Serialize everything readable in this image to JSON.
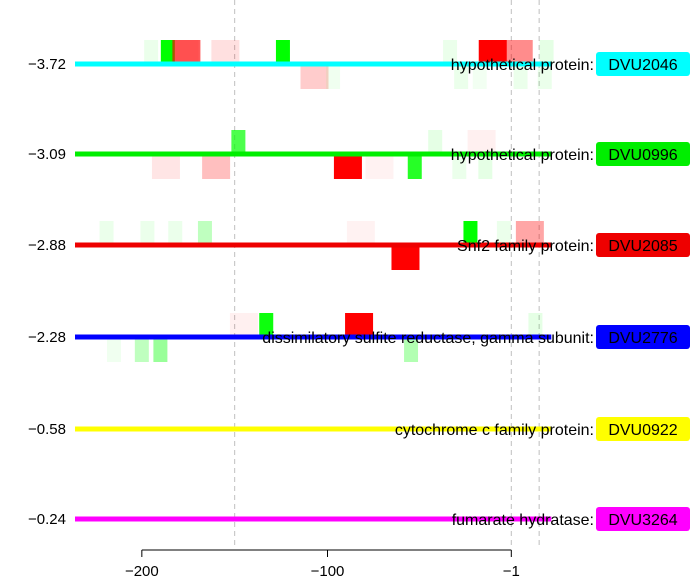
{
  "chart_data": {
    "type": "bar",
    "title": "",
    "xlabel": "",
    "ylabel": "",
    "xlim": [
      -236,
      36
    ],
    "x_ticks": [
      {
        "value": -200,
        "label": "−200"
      },
      {
        "value": -100,
        "label": "−100"
      },
      {
        "value": -1,
        "label": "−1"
      }
    ],
    "dashed_lines_x": [
      -150,
      -1,
      14
    ],
    "colors": {
      "red": "#ff0000",
      "green": "#00ff00"
    },
    "genes": [
      {
        "score": "−3.72",
        "description": "hypothetical protein:",
        "id": "DVU2046",
        "color": "#00ffff",
        "sites": [
          {
            "pos": -195,
            "strand": "up",
            "kind": "green",
            "opacity": 0.08
          },
          {
            "pos": -177,
            "strand": "up",
            "kind": "red",
            "opacity": 0.1
          },
          {
            "pos": -186,
            "strand": "up",
            "kind": "green",
            "opacity": 1
          },
          {
            "pos": -176,
            "strand": "up",
            "kind": "red",
            "opacity": 0.65
          },
          {
            "pos": -155,
            "strand": "up",
            "kind": "red",
            "opacity": 0.12
          },
          {
            "pos": -124,
            "strand": "up",
            "kind": "green",
            "opacity": 1
          },
          {
            "pos": -34,
            "strand": "up",
            "kind": "green",
            "opacity": 0.08
          },
          {
            "pos": -11,
            "strand": "up",
            "kind": "red",
            "opacity": 1
          },
          {
            "pos": 3,
            "strand": "up",
            "kind": "red",
            "opacity": 0.45
          },
          {
            "pos": 18,
            "strand": "up",
            "kind": "green",
            "opacity": 0.1
          },
          {
            "pos": -107,
            "strand": "down",
            "kind": "red",
            "opacity": 0.2
          },
          {
            "pos": -97,
            "strand": "down",
            "kind": "green",
            "opacity": 0.06
          },
          {
            "pos": -28,
            "strand": "down",
            "kind": "green",
            "opacity": 0.08
          },
          {
            "pos": -18,
            "strand": "down",
            "kind": "green",
            "opacity": 0.05
          },
          {
            "pos": 4,
            "strand": "down",
            "kind": "green",
            "opacity": 0.08
          },
          {
            "pos": 17,
            "strand": "down",
            "kind": "green",
            "opacity": 0.08
          }
        ]
      },
      {
        "score": "−3.09",
        "description": "hypothetical protein:",
        "id": "DVU0996",
        "color": "#00ee00",
        "sites": [
          {
            "pos": -148,
            "strand": "up",
            "kind": "green",
            "opacity": 0.7
          },
          {
            "pos": -42,
            "strand": "up",
            "kind": "green",
            "opacity": 0.1
          },
          {
            "pos": -17,
            "strand": "up",
            "kind": "red",
            "opacity": 0.06
          },
          {
            "pos": -187,
            "strand": "down",
            "kind": "red",
            "opacity": 0.1
          },
          {
            "pos": -160,
            "strand": "down",
            "kind": "red",
            "opacity": 0.25
          },
          {
            "pos": -89,
            "strand": "down",
            "kind": "red",
            "opacity": 1
          },
          {
            "pos": -72,
            "strand": "down",
            "kind": "red",
            "opacity": 0.05
          },
          {
            "pos": -53,
            "strand": "down",
            "kind": "green",
            "opacity": 0.85
          },
          {
            "pos": -29,
            "strand": "down",
            "kind": "green",
            "opacity": 0.08
          },
          {
            "pos": -15,
            "strand": "down",
            "kind": "green",
            "opacity": 0.1
          }
        ]
      },
      {
        "score": "−2.88",
        "description": "Snf2 family protein:",
        "id": "DVU2085",
        "color": "#ee0000",
        "sites": [
          {
            "pos": -219,
            "strand": "up",
            "kind": "green",
            "opacity": 0.08
          },
          {
            "pos": -197,
            "strand": "up",
            "kind": "green",
            "opacity": 0.08
          },
          {
            "pos": -182,
            "strand": "up",
            "kind": "green",
            "opacity": 0.08
          },
          {
            "pos": -166,
            "strand": "up",
            "kind": "green",
            "opacity": 0.25
          },
          {
            "pos": -82,
            "strand": "up",
            "kind": "red",
            "opacity": 0.05
          },
          {
            "pos": -23,
            "strand": "up",
            "kind": "green",
            "opacity": 1
          },
          {
            "pos": -5,
            "strand": "up",
            "kind": "green",
            "opacity": 0.08
          },
          {
            "pos": 9,
            "strand": "up",
            "kind": "red",
            "opacity": 0.35
          },
          {
            "pos": -58,
            "strand": "down",
            "kind": "red",
            "opacity": 1
          }
        ]
      },
      {
        "score": "−2.28",
        "description": "dissimilatory sulfite reductase, gamma subunit:",
        "id": "DVU2776",
        "color": "#0000ff",
        "sites": [
          {
            "pos": -145,
            "strand": "up",
            "kind": "red",
            "opacity": 0.06
          },
          {
            "pos": -133,
            "strand": "up",
            "kind": "green",
            "opacity": 0.95
          },
          {
            "pos": -83,
            "strand": "up",
            "kind": "red",
            "opacity": 1
          },
          {
            "pos": 12,
            "strand": "up",
            "kind": "green",
            "opacity": 0.1
          },
          {
            "pos": -215,
            "strand": "down",
            "kind": "green",
            "opacity": 0.06
          },
          {
            "pos": -200,
            "strand": "down",
            "kind": "green",
            "opacity": 0.25
          },
          {
            "pos": -190,
            "strand": "down",
            "kind": "green",
            "opacity": 0.4
          },
          {
            "pos": -55,
            "strand": "down",
            "kind": "green",
            "opacity": 0.3
          }
        ]
      },
      {
        "score": "−0.58",
        "description": "cytochrome c family protein:",
        "id": "DVU0922",
        "color": "#ffff00",
        "sites": []
      },
      {
        "score": "−0.24",
        "description": "fumarate hydratase:",
        "id": "DVU3264",
        "color": "#ff00ff",
        "sites": []
      }
    ]
  }
}
